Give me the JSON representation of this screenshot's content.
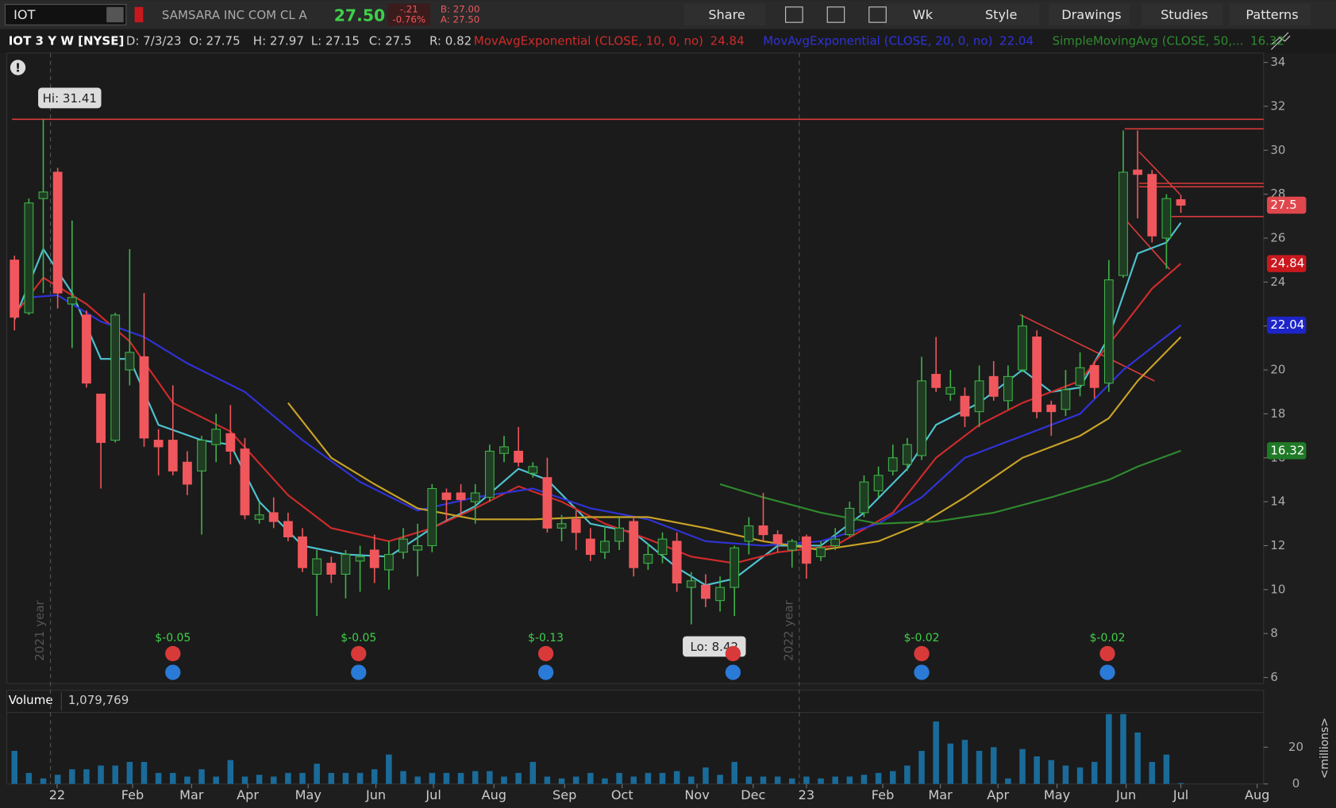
{
  "toolbar": {
    "symbol": "IOT",
    "company": "SAMSARA INC COM CL A",
    "last": "27.50",
    "change": "-.21",
    "change_pct": "-0.76%",
    "bid": "B: 27.00",
    "ask": "A: 27.50",
    "buttons": [
      "Share",
      "Wk",
      "Style",
      "Drawings",
      "Studies",
      "Patterns"
    ]
  },
  "info_bar": {
    "title": "IOT 3 Y W [NYSE]",
    "fields": [
      "D: 7/3/23",
      "O: 27.75",
      "H: 27.97",
      "L: 27.15",
      "C: 27.5",
      "R: 0.82"
    ]
  },
  "chart_data": {
    "type": "candlestick",
    "ylim": [
      6,
      34
    ],
    "yticks": [
      6,
      8,
      10,
      12,
      14,
      16,
      18,
      20,
      22,
      24,
      26,
      28,
      30,
      32,
      34
    ],
    "xlim": [
      -1,
      88
    ],
    "xticks": [
      {
        "value": 2.96,
        "label": "22"
      },
      {
        "value": 8.2,
        "label": "Feb"
      },
      {
        "value": 12.3,
        "label": "Mar"
      },
      {
        "value": 16.2,
        "label": "Apr"
      },
      {
        "value": 20.4,
        "label": "May"
      },
      {
        "value": 25.1,
        "label": "Jun"
      },
      {
        "value": 29.1,
        "label": "Jul"
      },
      {
        "value": 33.3,
        "label": "Aug"
      },
      {
        "value": 38.2,
        "label": "Sep"
      },
      {
        "value": 42.2,
        "label": "Oct"
      },
      {
        "value": 47.4,
        "label": "Nov"
      },
      {
        "value": 51.3,
        "label": "Dec"
      },
      {
        "value": 55,
        "label": "23"
      },
      {
        "value": 60.3,
        "label": "Feb"
      },
      {
        "value": 64.3,
        "label": "Mar"
      },
      {
        "value": 68.3,
        "label": "Apr"
      },
      {
        "value": 72.4,
        "label": "May"
      },
      {
        "value": 77.2,
        "label": "Jun"
      },
      {
        "value": 81,
        "label": "Jul"
      },
      {
        "value": 86.3,
        "label": "Aug"
      }
    ],
    "year_lines": [
      {
        "value": 2.5,
        "label": "2021 year"
      },
      {
        "value": 54.5,
        "label": "2022 year"
      }
    ],
    "candles": [
      [
        25,
        25.2,
        21.8,
        22.4
      ],
      [
        22.6,
        27.8,
        22.5,
        27.6
      ],
      [
        27.8,
        31.41,
        23.5,
        28.1
      ],
      [
        29,
        29.2,
        22.8,
        23.5
      ],
      [
        23,
        26.8,
        21,
        23.3
      ],
      [
        22.5,
        22.7,
        19.2,
        19.4
      ],
      [
        18.9,
        18.9,
        14.6,
        16.7
      ],
      [
        16.8,
        22.6,
        16.7,
        22.5
      ],
      [
        20,
        25.5,
        19.3,
        20.8
      ],
      [
        20.6,
        23.5,
        16.5,
        16.9
      ],
      [
        16.8,
        17.3,
        15.2,
        16.5
      ],
      [
        16.8,
        19.3,
        15.2,
        15.4
      ],
      [
        15.8,
        16.3,
        14.3,
        14.8
      ],
      [
        15.4,
        17,
        12.5,
        16.8
      ],
      [
        16.6,
        18,
        15.8,
        17.3
      ],
      [
        17.1,
        18.4,
        15.7,
        16.3
      ],
      [
        16.4,
        16.9,
        13.2,
        13.4
      ],
      [
        13.2,
        14,
        13,
        13.4
      ],
      [
        13.5,
        14.2,
        12.8,
        13.1
      ],
      [
        13.1,
        13.5,
        12.2,
        12.4
      ],
      [
        12.4,
        12.8,
        10.8,
        11
      ],
      [
        10.7,
        11.8,
        8.8,
        11.4
      ],
      [
        11.2,
        11.5,
        10.3,
        10.7
      ],
      [
        10.7,
        11.8,
        9.6,
        11.6
      ],
      [
        11.3,
        12,
        9.9,
        11.5
      ],
      [
        11.8,
        12.5,
        10.3,
        11
      ],
      [
        10.9,
        12.2,
        10,
        11.6
      ],
      [
        11.7,
        12.8,
        11.4,
        12.3
      ],
      [
        11.8,
        13,
        10.6,
        12
      ],
      [
        12,
        14.8,
        11.7,
        14.6
      ],
      [
        14.4,
        14.6,
        13.1,
        14.1
      ],
      [
        14.4,
        14.8,
        13.4,
        14.1
      ],
      [
        14,
        14.8,
        13,
        14.4
      ],
      [
        14.2,
        16.6,
        14,
        16.3
      ],
      [
        16.2,
        17,
        15.8,
        16.5
      ],
      [
        16.3,
        17.4,
        15.6,
        15.8
      ],
      [
        15.3,
        15.8,
        15.1,
        15.6
      ],
      [
        15.1,
        16,
        12.6,
        12.8
      ],
      [
        12.8,
        13.4,
        12.2,
        13
      ],
      [
        13.2,
        13.6,
        11.8,
        12.6
      ],
      [
        12.3,
        12.8,
        11.3,
        11.6
      ],
      [
        11.7,
        12.9,
        11.4,
        12.2
      ],
      [
        12.2,
        13.3,
        11.8,
        12.8
      ],
      [
        13.1,
        13.3,
        10.6,
        11
      ],
      [
        11.2,
        12.1,
        10.9,
        11.6
      ],
      [
        11.6,
        12.6,
        11.2,
        12.3
      ],
      [
        12.2,
        12.6,
        9.9,
        10.3
      ],
      [
        10.1,
        10.8,
        8.42,
        10.4
      ],
      [
        10.2,
        10.7,
        9.2,
        9.6
      ],
      [
        9.5,
        10.6,
        9,
        10.1
      ],
      [
        10.1,
        12,
        8.8,
        11.9
      ],
      [
        12.2,
        13.3,
        11.6,
        12.9
      ],
      [
        12.9,
        14.4,
        12.2,
        12.5
      ],
      [
        12.5,
        12.7,
        11.7,
        12.1
      ],
      [
        11.8,
        12.3,
        11,
        12.2
      ],
      [
        12.4,
        12.5,
        10.5,
        11.2
      ],
      [
        11.5,
        12.2,
        11.3,
        11.9
      ],
      [
        12,
        12.8,
        11.8,
        12.3
      ],
      [
        12.5,
        14,
        12.4,
        13.7
      ],
      [
        13.5,
        15.2,
        13.3,
        14.9
      ],
      [
        14.5,
        15.6,
        14.2,
        15.2
      ],
      [
        15.4,
        16.6,
        15.2,
        16
      ],
      [
        15.7,
        16.9,
        15.4,
        16.6
      ],
      [
        16.1,
        20.6,
        15.9,
        19.5
      ],
      [
        19.8,
        21.5,
        19,
        19.2
      ],
      [
        18.9,
        20,
        18.6,
        19.2
      ],
      [
        18.8,
        19.2,
        17.4,
        17.9
      ],
      [
        18.1,
        20.2,
        17.4,
        19.5
      ],
      [
        19.7,
        20.4,
        18.6,
        18.8
      ],
      [
        18.6,
        20.2,
        18.2,
        19.7
      ],
      [
        20,
        22.5,
        19.9,
        22
      ],
      [
        21.5,
        21.8,
        17.8,
        18.1
      ],
      [
        18.4,
        18.6,
        17,
        18.1
      ],
      [
        18.2,
        20,
        17.9,
        19.1
      ],
      [
        19.3,
        20.8,
        18.8,
        20.1
      ],
      [
        20.2,
        20.4,
        18.7,
        19.2
      ],
      [
        19.4,
        25,
        19,
        24.1
      ],
      [
        24.3,
        30.9,
        24.2,
        29
      ],
      [
        29.1,
        30.9,
        26.9,
        28.9
      ],
      [
        28.9,
        29.1,
        25.8,
        26.1
      ],
      [
        26,
        28,
        24.6,
        27.8
      ],
      [
        27.75,
        27.97,
        27.15,
        27.5
      ]
    ],
    "up_color": "#3fb24a",
    "down_color": "#f0575c",
    "last_tag_color": "#e0474c",
    "hi_label": "Hi: 31.41",
    "lo_label": "Lo: 8.42",
    "hlines": [
      31.41
    ],
    "series": [
      {
        "color": "#4fc3d0",
        "x": [
          0,
          2,
          4,
          6,
          8,
          10,
          13,
          15,
          17,
          20,
          23,
          26,
          29,
          32,
          35,
          37,
          40,
          43,
          46,
          48,
          50,
          53,
          56,
          59,
          62,
          64,
          67,
          70,
          72,
          74,
          76,
          78,
          80,
          81
        ],
        "values": [
          22.3,
          25.5,
          23.5,
          20.5,
          20.5,
          17.5,
          16.8,
          16.6,
          14,
          12,
          11.6,
          11.5,
          12.8,
          13.8,
          15.5,
          15,
          13,
          12.6,
          11,
          10.2,
          10.5,
          12,
          12,
          13.5,
          15.5,
          17.5,
          18.5,
          20,
          19,
          19.2,
          21.5,
          25.3,
          25.8,
          26.7
        ]
      },
      {
        "name": "MovAvgExponential (CLOSE, 10, 0, no)",
        "color": "#d02b2b",
        "tag_color": "#c8181e",
        "legend_value": 24.84,
        "x": [
          0,
          2,
          5,
          8,
          11,
          15,
          19,
          22,
          26,
          29,
          32,
          35,
          38,
          41,
          44,
          47,
          50,
          53,
          57,
          61,
          64,
          67,
          70,
          74,
          77,
          79,
          81
        ],
        "values": [
          22.5,
          24.2,
          23,
          21.3,
          18.5,
          17.2,
          14.3,
          12.8,
          12.2,
          12.8,
          13.7,
          14.7,
          14,
          13,
          12.3,
          11.5,
          11.2,
          11.7,
          12,
          13.5,
          16,
          17.5,
          18.5,
          19.5,
          22,
          23.7,
          24.84
        ]
      },
      {
        "name": "MovAvgExponential (CLOSE, 20, 0, no)",
        "color": "#3033d8",
        "tag_color": "#1d25c8",
        "legend_value": 22.04,
        "x": [
          1,
          3,
          6,
          9,
          12,
          16,
          20,
          24,
          28,
          32,
          36,
          40,
          44,
          48,
          52,
          56,
          60,
          63,
          66,
          70,
          74,
          77,
          81
        ],
        "values": [
          23.3,
          23.4,
          22.2,
          21.5,
          20.3,
          19,
          16.8,
          14.9,
          13.6,
          14.2,
          14.6,
          13.7,
          13.2,
          12.2,
          12,
          12.2,
          13,
          14.2,
          16,
          17,
          18,
          20,
          22.04
        ]
      },
      {
        "color": "#c9a227",
        "x": [
          19,
          22,
          25,
          28,
          32,
          36,
          40,
          44,
          48,
          52,
          56,
          60,
          63,
          66,
          70,
          74,
          76,
          78,
          81
        ],
        "values": [
          18.5,
          16,
          14.8,
          13.7,
          13.2,
          13.2,
          13.3,
          13.3,
          12.8,
          12.2,
          11.8,
          12.2,
          13,
          14.2,
          16,
          17,
          17.8,
          19.5,
          21.5
        ]
      },
      {
        "name": "SimpleMovingAvg (CLOSE, 50,...",
        "color": "#2f8a2f",
        "tag_color": "#1f7a26",
        "legend_value": 16.32,
        "x": [
          49,
          52,
          56,
          60,
          64,
          68,
          72,
          76,
          78,
          81
        ],
        "values": [
          14.8,
          14.2,
          13.5,
          13,
          13.1,
          13.5,
          14.2,
          15,
          15.6,
          16.32
        ]
      }
    ],
    "events": [
      {
        "x": 11,
        "label": "$-0.05"
      },
      {
        "x": 23.9,
        "label": "$-0.05"
      },
      {
        "x": 36.9,
        "label": "$-0.13"
      },
      {
        "x": 49.9,
        "label": null
      },
      {
        "x": 63,
        "label": "$-0.02"
      },
      {
        "x": 75.9,
        "label": "$-0.02"
      }
    ],
    "volume": {
      "title": "Volume",
      "last": "1,079,769",
      "unit": "<millions>",
      "color": "#1a6b99",
      "ylim": [
        0,
        38
      ],
      "yticks": [
        0,
        20
      ],
      "values": [
        18,
        6,
        3,
        5,
        8,
        8,
        10,
        10,
        12,
        12,
        6,
        6,
        4,
        8,
        4,
        13,
        4,
        5,
        4,
        6,
        6,
        11,
        6,
        6,
        6,
        8,
        16,
        7,
        4,
        6,
        6,
        6,
        7,
        7,
        4,
        6,
        12,
        4,
        3,
        4,
        6,
        3,
        6,
        4,
        6,
        6,
        7,
        4,
        9,
        5,
        12,
        4,
        4,
        4,
        3,
        4,
        3,
        4,
        4,
        5,
        6,
        7,
        10,
        18,
        34,
        22,
        24,
        18,
        20,
        3,
        19,
        15,
        13,
        10,
        9,
        12,
        38,
        38,
        28,
        12,
        16,
        0.5
      ]
    }
  }
}
